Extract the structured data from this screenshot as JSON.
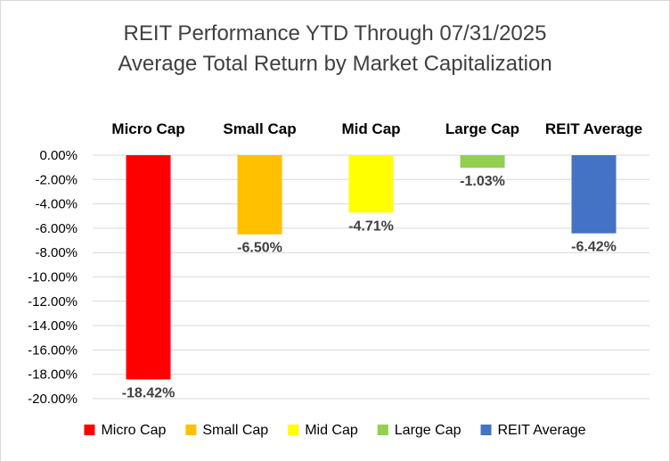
{
  "chart_data": {
    "type": "bar",
    "title_lines": [
      "REIT Performance YTD Through 07/31/2025",
      "Average Total Return by Market Capitalization"
    ],
    "categories": [
      "Micro Cap",
      "Small Cap",
      "Mid Cap",
      "Large Cap",
      "REIT Average"
    ],
    "values": [
      -18.42,
      -6.5,
      -4.71,
      -1.03,
      -6.42
    ],
    "data_labels": [
      "-18.42%",
      "-6.50%",
      "-4.71%",
      "-1.03%",
      "-6.42%"
    ],
    "colors": [
      "#ff0000",
      "#ffc000",
      "#ffff00",
      "#92d050",
      "#4472c4"
    ],
    "ylim": [
      -20,
      0
    ],
    "y_ticks": [
      0,
      -2,
      -4,
      -6,
      -8,
      -10,
      -12,
      -14,
      -16,
      -18,
      -20
    ],
    "y_tick_labels": [
      "0.00%",
      "-2.00%",
      "-4.00%",
      "-6.00%",
      "-8.00%",
      "-10.00%",
      "-12.00%",
      "-14.00%",
      "-16.00%",
      "-18.00%",
      "-20.00%"
    ],
    "xlabel": "",
    "ylabel": "",
    "grid": true,
    "category_labels_position": "top",
    "legend": {
      "position": "bottom",
      "entries": [
        "Micro Cap",
        "Small Cap",
        "Mid Cap",
        "Large Cap",
        "REIT Average"
      ]
    }
  }
}
